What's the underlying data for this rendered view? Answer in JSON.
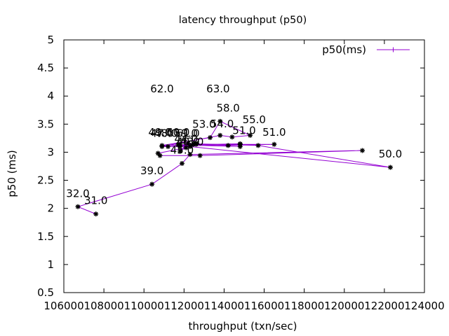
{
  "chart_data": {
    "type": "line",
    "title": "latency throughput (p50)",
    "xlabel": "throughput (txn/sec)",
    "ylabel": "p50 (ms)",
    "xlim": [
      106000,
      124000
    ],
    "ylim": [
      0.5,
      5
    ],
    "xticks": [
      106000,
      108000,
      110000,
      112000,
      114000,
      116000,
      118000,
      120000,
      122000,
      124000
    ],
    "xtick_labels": [
      "106000",
      "108000",
      "110000",
      "112000",
      "114000",
      "116000",
      "118000",
      "120000",
      "122000",
      "124000"
    ],
    "yticks": [
      0.5,
      1,
      1.5,
      2,
      2.5,
      3,
      3.5,
      4,
      4.5,
      5
    ],
    "ytick_labels": [
      "0.5",
      "1",
      "1.5",
      "2",
      "2.5",
      "3",
      "3.5",
      "4",
      "4.5",
      "5"
    ],
    "grid": false,
    "legend_position": "top-right",
    "series": [
      {
        "name": "p50(ms)",
        "color": "#9400d3",
        "x": [
          107600,
          106700,
          110400,
          111900,
          112300,
          120900,
          112800,
          110800,
          110700,
          112100,
          111800,
          112200,
          111800,
          112500,
          115700,
          122300,
          112300,
          111200,
          112400,
          112600,
          111800,
          114800,
          114800,
          110900,
          113300,
          113800,
          115300,
          114400,
          113800,
          110900,
          114800,
          116500,
          114200,
          112600,
          111700
        ],
        "y": [
          1.9,
          2.03,
          2.43,
          2.8,
          2.96,
          3.03,
          2.94,
          2.94,
          2.98,
          3.08,
          3.02,
          3.16,
          3.1,
          3.15,
          3.12,
          2.73,
          3.1,
          3.1,
          3.13,
          3.16,
          3.13,
          3.1,
          3.15,
          3.12,
          3.26,
          3.55,
          3.3,
          3.27,
          3.3,
          3.1,
          3.14,
          3.14,
          3.12,
          3.14,
          3.13
        ]
      }
    ],
    "annotations": [
      {
        "text": "31.0",
        "x": 107600,
        "y": 1.9
      },
      {
        "text": "32.0",
        "x": 106700,
        "y": 2.03
      },
      {
        "text": "39.0",
        "x": 110400,
        "y": 2.43
      },
      {
        "text": "45.0",
        "x": 111900,
        "y": 2.8
      },
      {
        "text": "47.0",
        "x": 110900,
        "y": 3.1
      },
      {
        "text": "48.0",
        "x": 111100,
        "y": 3.1
      },
      {
        "text": "49.0",
        "x": 110800,
        "y": 3.12
      },
      {
        "text": "50.0",
        "x": 122300,
        "y": 2.73
      },
      {
        "text": "51.0",
        "x": 115000,
        "y": 3.15
      },
      {
        "text": "51.0",
        "x": 116500,
        "y": 3.12
      },
      {
        "text": "53.0",
        "x": 113000,
        "y": 3.26
      },
      {
        "text": "54.0",
        "x": 113900,
        "y": 3.27
      },
      {
        "text": "55.0",
        "x": 115500,
        "y": 3.34
      },
      {
        "text": "58.0",
        "x": 114200,
        "y": 3.55
      },
      {
        "text": "59.0",
        "x": 112100,
        "y": 3.1
      },
      {
        "text": "60.0",
        "x": 111700,
        "y": 3.12
      },
      {
        "text": "61.0",
        "x": 112200,
        "y": 3.1
      },
      {
        "text": "62.0",
        "x": 110900,
        "y": 3.89
      },
      {
        "text": "63.0",
        "x": 113700,
        "y": 3.89
      },
      {
        "text": "40.0",
        "x": 112200,
        "y": 2.95
      },
      {
        "text": "43.0",
        "x": 112400,
        "y": 2.95
      },
      {
        "text": "44.0",
        "x": 112100,
        "y": 3.0
      }
    ]
  }
}
